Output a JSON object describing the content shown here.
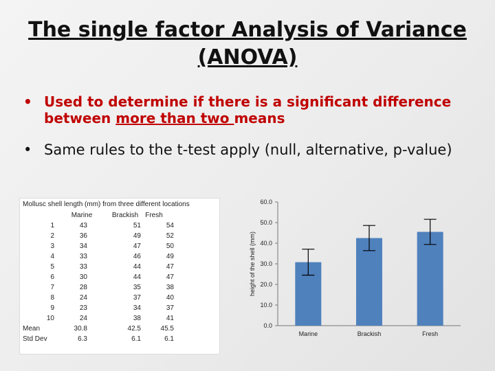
{
  "title": {
    "line1": "The single factor Analysis of Variance",
    "line2": "(ANOVA)"
  },
  "bullets": {
    "b1_part1": "Used to determine if there is a significant difference",
    "b1_part2": "between ",
    "b1_underlined": "more than two ",
    "b1_part3": "means",
    "b2": "Same rules to the t-test apply (null, alternative, p-value)"
  },
  "table": {
    "caption": "Mollusc shell length (mm) from three different locations",
    "headers": [
      "Marine",
      "Brackish",
      "Fresh"
    ],
    "rows": [
      [
        "1",
        "43",
        "51",
        "54"
      ],
      [
        "2",
        "36",
        "49",
        "52"
      ],
      [
        "3",
        "34",
        "47",
        "50"
      ],
      [
        "4",
        "33",
        "46",
        "49"
      ],
      [
        "5",
        "33",
        "44",
        "47"
      ],
      [
        "6",
        "30",
        "44",
        "47"
      ],
      [
        "7",
        "28",
        "35",
        "38"
      ],
      [
        "8",
        "24",
        "37",
        "40"
      ],
      [
        "9",
        "23",
        "34",
        "37"
      ],
      [
        "10",
        "24",
        "38",
        "41"
      ]
    ],
    "mean": [
      "Mean",
      "30.8",
      "42.5",
      "45.5"
    ],
    "std": [
      "Std Dev",
      "6.3",
      "6.1",
      "6.1"
    ]
  },
  "chart_data": {
    "type": "bar",
    "categories": [
      "Marine",
      "Brackish",
      "Fresh"
    ],
    "values": [
      30.8,
      42.5,
      45.5
    ],
    "errors": [
      6.3,
      6.1,
      6.1
    ],
    "ylabel": "height of the shell (mm)",
    "ylim": [
      0,
      60
    ],
    "yticks": [
      "0.0",
      "10.0",
      "20.0",
      "30.0",
      "40.0",
      "50.0",
      "60.0"
    ],
    "grid": false,
    "bar_color": "#4f81bd"
  }
}
